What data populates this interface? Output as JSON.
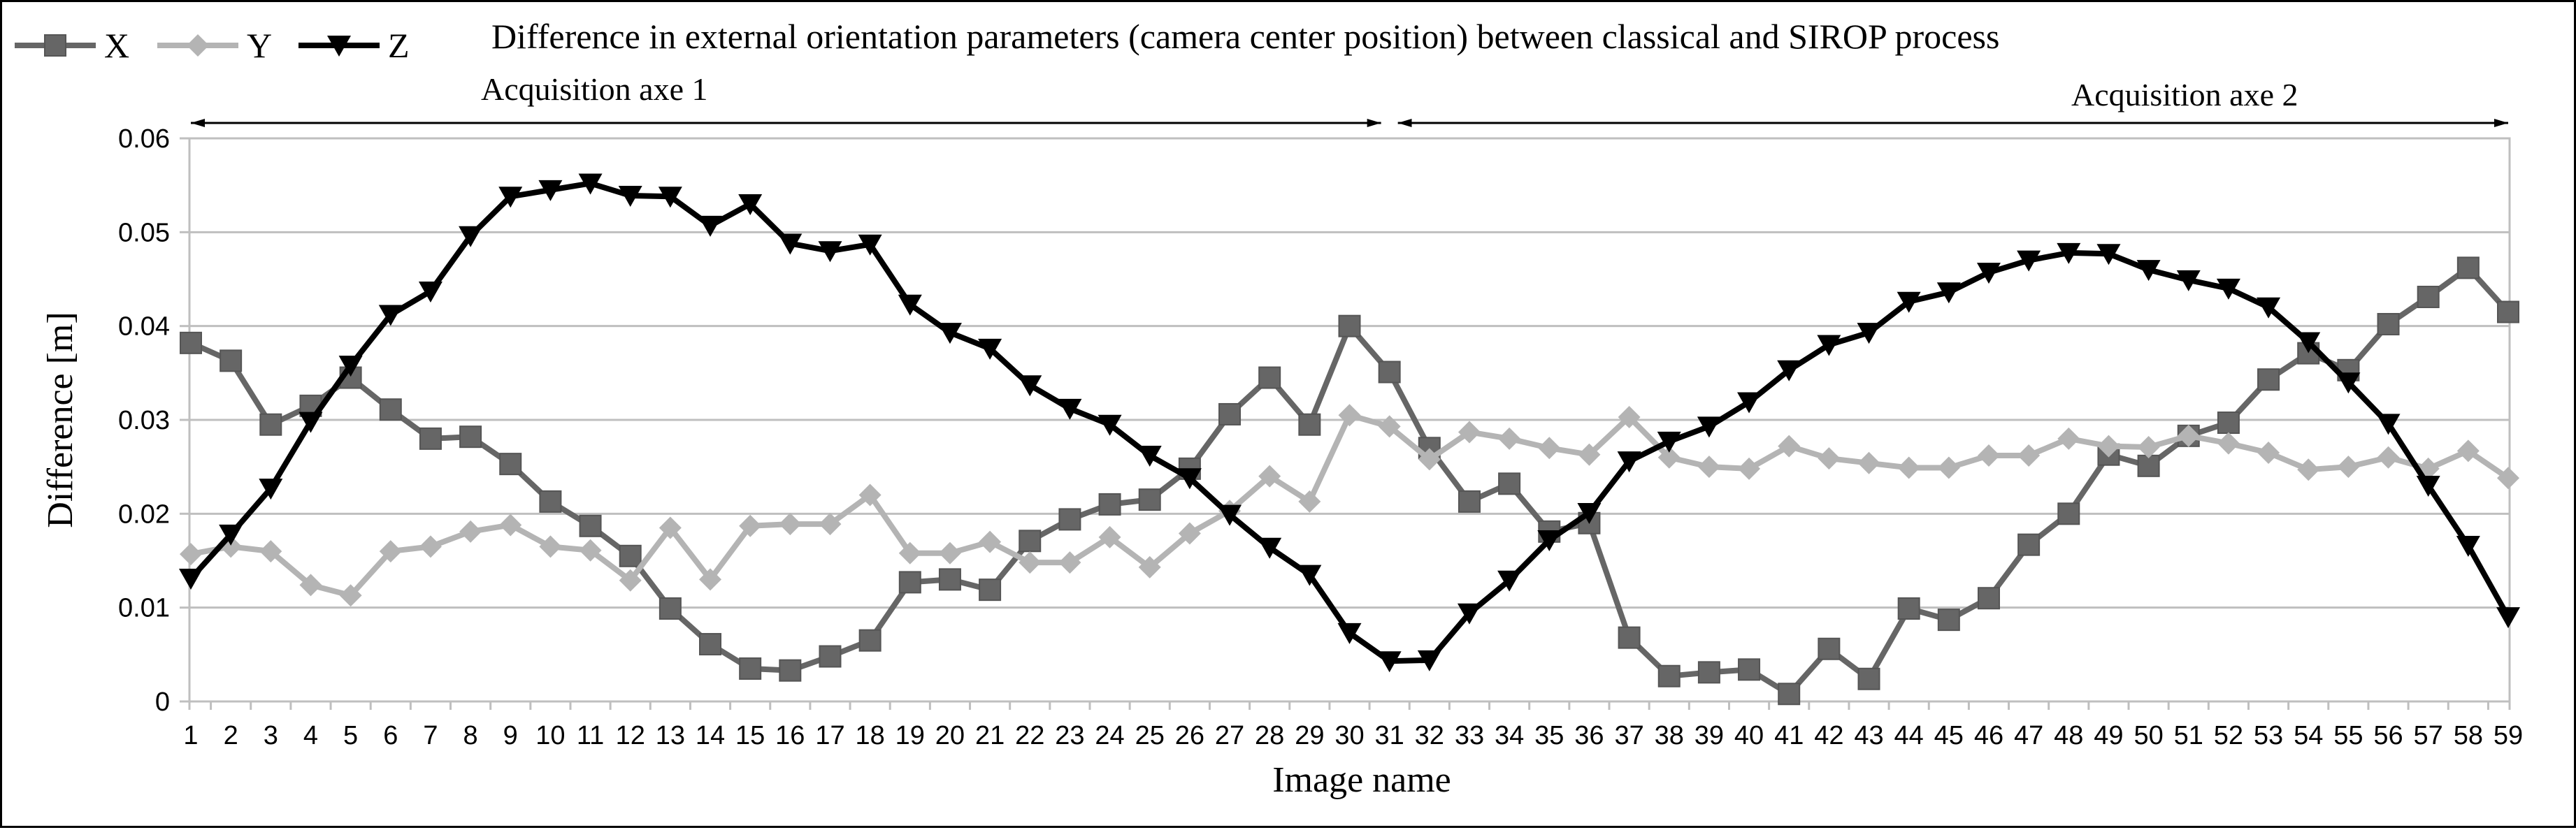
{
  "chart_data": {
    "type": "line",
    "title": "Difference in external orientation parameters (camera center position) between classical and SIROP process",
    "xlabel": "Image name",
    "ylabel": "Difference [m]",
    "ylim": [
      0,
      0.06
    ],
    "yticks": [
      "0",
      "0.01",
      "0.02",
      "0.03",
      "0.04",
      "0.05",
      "0.06"
    ],
    "grid": "horizontal",
    "legend_position": "top-left",
    "categories": [
      "1",
      "2",
      "3",
      "4",
      "5",
      "6",
      "7",
      "8",
      "9",
      "10",
      "11",
      "12",
      "13",
      "14",
      "15",
      "16",
      "17",
      "18",
      "19",
      "20",
      "21",
      "22",
      "23",
      "24",
      "25",
      "26",
      "27",
      "28",
      "29",
      "30",
      "31",
      "32",
      "33",
      "34",
      "35",
      "36",
      "37",
      "38",
      "39",
      "40",
      "41",
      "42",
      "43",
      "44",
      "45",
      "46",
      "47",
      "48",
      "49",
      "50",
      "51",
      "52",
      "53",
      "54",
      "55",
      "56",
      "57",
      "58",
      "59"
    ],
    "series": [
      {
        "name": "X",
        "color": "#666666",
        "marker": "square",
        "values": [
          0.0382,
          0.0363,
          0.0295,
          0.0315,
          0.0345,
          0.0311,
          0.028,
          0.0282,
          0.0253,
          0.0213,
          0.0187,
          0.0155,
          0.0099,
          0.0061,
          0.0035,
          0.0033,
          0.0048,
          0.0065,
          0.0127,
          0.013,
          0.0119,
          0.0171,
          0.0194,
          0.021,
          0.0215,
          0.0248,
          0.0306,
          0.0345,
          0.0295,
          0.04,
          0.0351,
          0.027,
          0.0213,
          0.0232,
          0.0181,
          0.019,
          0.0068,
          0.0027,
          0.0031,
          0.0034,
          0.0008,
          0.0056,
          0.0024,
          0.0099,
          0.0087,
          0.011,
          0.0167,
          0.02,
          0.0263,
          0.0251,
          0.0283,
          0.0297,
          0.0343,
          0.0371,
          0.0353,
          0.0402,
          0.0431,
          0.0462,
          0.0415
        ]
      },
      {
        "name": "Y",
        "color": "#b4b4b4",
        "marker": "diamond",
        "values": [
          0.0157,
          0.0165,
          0.016,
          0.0124,
          0.0113,
          0.016,
          0.0165,
          0.0181,
          0.0188,
          0.0165,
          0.0161,
          0.0129,
          0.0185,
          0.013,
          0.0187,
          0.0189,
          0.0189,
          0.022,
          0.0158,
          0.0158,
          0.017,
          0.0148,
          0.0148,
          0.0175,
          0.0143,
          0.0179,
          0.0203,
          0.024,
          0.0213,
          0.0305,
          0.0293,
          0.0258,
          0.0287,
          0.028,
          0.027,
          0.0263,
          0.0303,
          0.026,
          0.025,
          0.0248,
          0.0272,
          0.0259,
          0.0254,
          0.0249,
          0.0249,
          0.0262,
          0.0262,
          0.028,
          0.0272,
          0.0271,
          0.0283,
          0.0275,
          0.0265,
          0.0247,
          0.025,
          0.026,
          0.0248,
          0.0267,
          0.0238
        ]
      },
      {
        "name": "Z",
        "color": "#000000",
        "marker": "triangle-down",
        "values": [
          0.0131,
          0.0178,
          0.0227,
          0.0298,
          0.0358,
          0.0412,
          0.0437,
          0.0496,
          0.0538,
          0.0545,
          0.0552,
          0.0539,
          0.0538,
          0.0507,
          0.053,
          0.0488,
          0.048,
          0.0487,
          0.0423,
          0.0393,
          0.0376,
          0.0337,
          0.0312,
          0.0295,
          0.0262,
          0.0238,
          0.0199,
          0.0164,
          0.0135,
          0.0073,
          0.0043,
          0.0044,
          0.0094,
          0.0129,
          0.0172,
          0.0201,
          0.0256,
          0.0277,
          0.0293,
          0.0319,
          0.0353,
          0.038,
          0.0393,
          0.0426,
          0.0436,
          0.0457,
          0.047,
          0.0478,
          0.0477,
          0.046,
          0.0449,
          0.044,
          0.042,
          0.0383,
          0.034,
          0.0296,
          0.023,
          0.0166,
          0.009
        ]
      }
    ],
    "annotations": [
      {
        "text": "Acquisition axe 1",
        "from": "1",
        "to": "31"
      },
      {
        "text": "Acquisition axe 2",
        "from": "31",
        "to": "59"
      }
    ]
  }
}
